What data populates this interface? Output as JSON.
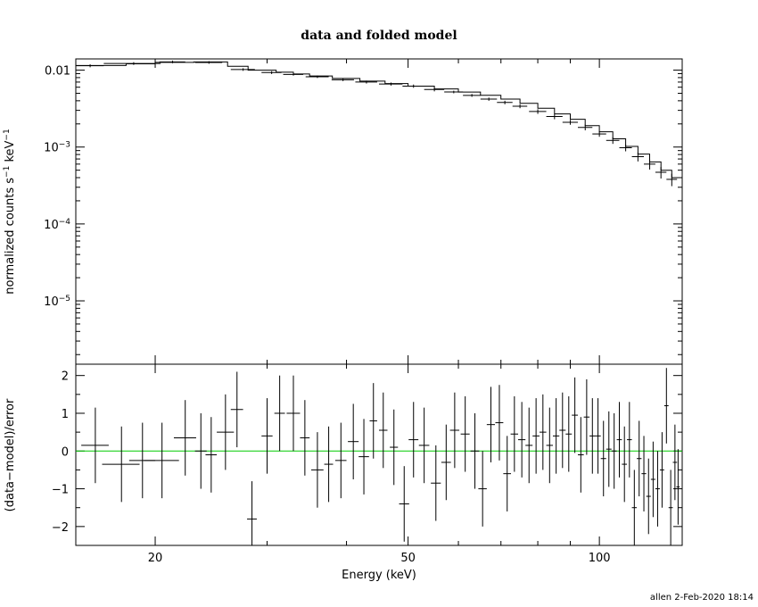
{
  "chart_data": [
    {
      "type": "line",
      "panel": "top",
      "title": "data and folded model",
      "ylabel": "normalized counts s",
      "ylabel_sup1": "−1",
      "ylabel_mid": " keV",
      "ylabel_sup2": "−1",
      "xscale": "log",
      "yscale": "log",
      "xlim": [
        15,
        135
      ],
      "ylim": [
        1.5e-06,
        0.014
      ],
      "ytick_labels": [
        {
          "value": 0.01,
          "base": "0.01",
          "sup": ""
        },
        {
          "value": 0.001,
          "base": "10",
          "sup": "−3"
        },
        {
          "value": 0.0001,
          "base": "10",
          "sup": "−4"
        },
        {
          "value": 1e-05,
          "base": "10",
          "sup": "−5"
        }
      ],
      "series": [
        {
          "x": [
            15.8,
            18.5,
            21.3,
            24.3,
            27.5,
            30.5,
            33.0,
            36.0,
            39.5,
            43.0,
            47.0,
            51.0,
            55.0,
            59.0,
            63.0,
            67.0,
            71.0,
            75.0,
            80.0,
            85.0,
            90.0,
            95.0,
            100.0,
            105.0,
            110.0,
            115.0,
            120.0,
            125.0,
            130.0
          ],
          "xerr": [
            0.8,
            1.9,
            1.0,
            1.2,
            1.2,
            1.1,
            1.2,
            1.5,
            1.6,
            1.7,
            2.0,
            2.0,
            2.0,
            2.0,
            2.0,
            2.0,
            2.0,
            2.0,
            2.5,
            2.5,
            2.5,
            2.5,
            2.5,
            2.5,
            2.5,
            2.5,
            2.5,
            2.5,
            2.5
          ],
          "y": [
            0.0114,
            0.0122,
            0.0128,
            0.0126,
            0.0102,
            0.0093,
            0.0088,
            0.0082,
            0.0075,
            0.007,
            0.0066,
            0.0062,
            0.0056,
            0.0052,
            0.0047,
            0.0042,
            0.0038,
            0.0034,
            0.0029,
            0.0025,
            0.0021,
            0.0018,
            0.00148,
            0.00122,
            0.00098,
            0.00075,
            0.0006,
            0.00047,
            0.00038
          ],
          "yerr": [
            0.0005,
            0.0005,
            0.0005,
            0.0005,
            0.0004,
            0.0004,
            0.0003,
            0.0003,
            0.0003,
            0.0003,
            0.0003,
            0.0003,
            0.0003,
            0.0002,
            0.0002,
            0.0002,
            0.0002,
            0.0002,
            0.0002,
            0.0002,
            0.00015,
            0.00015,
            0.00012,
            0.00012,
            0.0001,
            0.0001,
            9e-05,
            8e-05,
            7e-05
          ]
        }
      ],
      "model_step": {
        "x": [
          15,
          18,
          20,
          23,
          26,
          28,
          31,
          33,
          35,
          38,
          42,
          46,
          50,
          55,
          60,
          65,
          70,
          75,
          80,
          85,
          90,
          95,
          100,
          105,
          110,
          115,
          120,
          125,
          130,
          135
        ],
        "y": [
          0.0115,
          0.0121,
          0.0126,
          0.0128,
          0.0112,
          0.01,
          0.0094,
          0.0089,
          0.0084,
          0.0078,
          0.0072,
          0.0067,
          0.0062,
          0.0057,
          0.0052,
          0.0047,
          0.0042,
          0.0037,
          0.0032,
          0.0027,
          0.0023,
          0.0019,
          0.00158,
          0.00128,
          0.00102,
          0.00081,
          0.00064,
          0.0005,
          0.0004,
          0.00034
        ]
      }
    },
    {
      "type": "scatter",
      "panel": "bottom",
      "xlabel": "Energy (keV)",
      "ylabel": "(data−model)/error",
      "xscale": "log",
      "xlim": [
        15,
        135
      ],
      "ylim": [
        -2.5,
        2.3
      ],
      "xticks": [
        20,
        50,
        100
      ],
      "xtick_labels": [
        "20",
        "50",
        "100"
      ],
      "yticks": [
        -2,
        -1,
        0,
        1,
        2
      ],
      "ytick_labels": [
        "−2",
        "−1",
        "0",
        "1",
        "2"
      ],
      "zero_line_color": "#00cc00",
      "series": [
        {
          "x": [
            16.1,
            17.7,
            19.1,
            20.5,
            22.3,
            23.6,
            24.5,
            25.8,
            26.9,
            28.4,
            30.0,
            31.4,
            33.0,
            34.4,
            36.0,
            37.5,
            39.2,
            41.0,
            42.6,
            44.1,
            45.7,
            47.5,
            49.3,
            51.0,
            53.0,
            55.3,
            57.4,
            59.2,
            61.5,
            63.7,
            65.5,
            67.5,
            69.6,
            71.6,
            73.5,
            75.5,
            77.5,
            79.5,
            81.5,
            83.5,
            85.5,
            87.5,
            89.5,
            91.5,
            93.5,
            95.5,
            97.5,
            99.5,
            101.5,
            103.5,
            105.5,
            107.5,
            109.5,
            111.5,
            113.5,
            115.5,
            117.5,
            119.5,
            121.5,
            123.5,
            125.5,
            127.5,
            129.5,
            131.5,
            133.0
          ],
          "xerr": [
            0.8,
            1.2,
            0.9,
            1.3,
            0.9,
            0.5,
            0.5,
            0.8,
            0.6,
            0.5,
            0.6,
            0.6,
            0.8,
            0.6,
            0.8,
            0.6,
            0.8,
            0.8,
            0.8,
            0.6,
            0.7,
            0.7,
            0.9,
            0.9,
            1.0,
            1.0,
            1.0,
            1.0,
            1.0,
            1.0,
            1.0,
            1.0,
            1.0,
            1.0,
            1.0,
            1.0,
            1.0,
            1.0,
            1.0,
            1.0,
            1.0,
            1.0,
            1.0,
            1.0,
            1.0,
            1.0,
            1.0,
            1.0,
            1.0,
            1.0,
            1.0,
            1.0,
            1.0,
            1.0,
            1.0,
            1.0,
            1.0,
            1.0,
            1.0,
            1.0,
            1.0,
            1.0,
            1.0,
            1.0,
            0.8
          ],
          "y": [
            0.15,
            -0.35,
            -0.25,
            -0.25,
            0.35,
            0.0,
            -0.1,
            0.5,
            1.1,
            -1.8,
            0.4,
            1.0,
            1.0,
            0.35,
            -0.5,
            -0.35,
            -0.25,
            0.25,
            -0.15,
            0.8,
            0.55,
            0.1,
            -1.4,
            0.3,
            0.15,
            -0.85,
            -0.3,
            0.55,
            0.45,
            0.0,
            -1.0,
            0.7,
            0.75,
            -0.6,
            0.45,
            0.3,
            0.15,
            0.4,
            0.5,
            0.15,
            0.4,
            0.55,
            0.45,
            0.95,
            -0.1,
            0.9,
            0.4,
            0.4,
            -0.2,
            0.05,
            0.0,
            0.3,
            -0.35,
            0.3,
            -1.5,
            -0.2,
            -0.6,
            -1.2,
            -0.75,
            -1.0,
            -0.5,
            1.2,
            -1.5,
            -0.3,
            -0.95
          ],
          "yerr": [
            1.0,
            1.0,
            1.0,
            1.0,
            1.0,
            1.0,
            1.0,
            1.0,
            1.0,
            1.0,
            1.0,
            1.0,
            1.0,
            1.0,
            1.0,
            1.0,
            1.0,
            1.0,
            1.0,
            1.0,
            1.0,
            1.0,
            1.0,
            1.0,
            1.0,
            1.0,
            1.0,
            1.0,
            1.0,
            1.0,
            1.0,
            1.0,
            1.0,
            1.0,
            1.0,
            1.0,
            1.0,
            1.0,
            1.0,
            1.0,
            1.0,
            1.0,
            1.0,
            1.0,
            1.0,
            1.0,
            1.0,
            1.0,
            1.0,
            1.0,
            1.0,
            1.0,
            1.0,
            1.0,
            1.0,
            1.0,
            1.0,
            1.0,
            1.0,
            1.0,
            1.0,
            1.0,
            1.0,
            1.0,
            1.0
          ]
        }
      ]
    }
  ],
  "footer": "allen  2-Feb-2020 18:14"
}
